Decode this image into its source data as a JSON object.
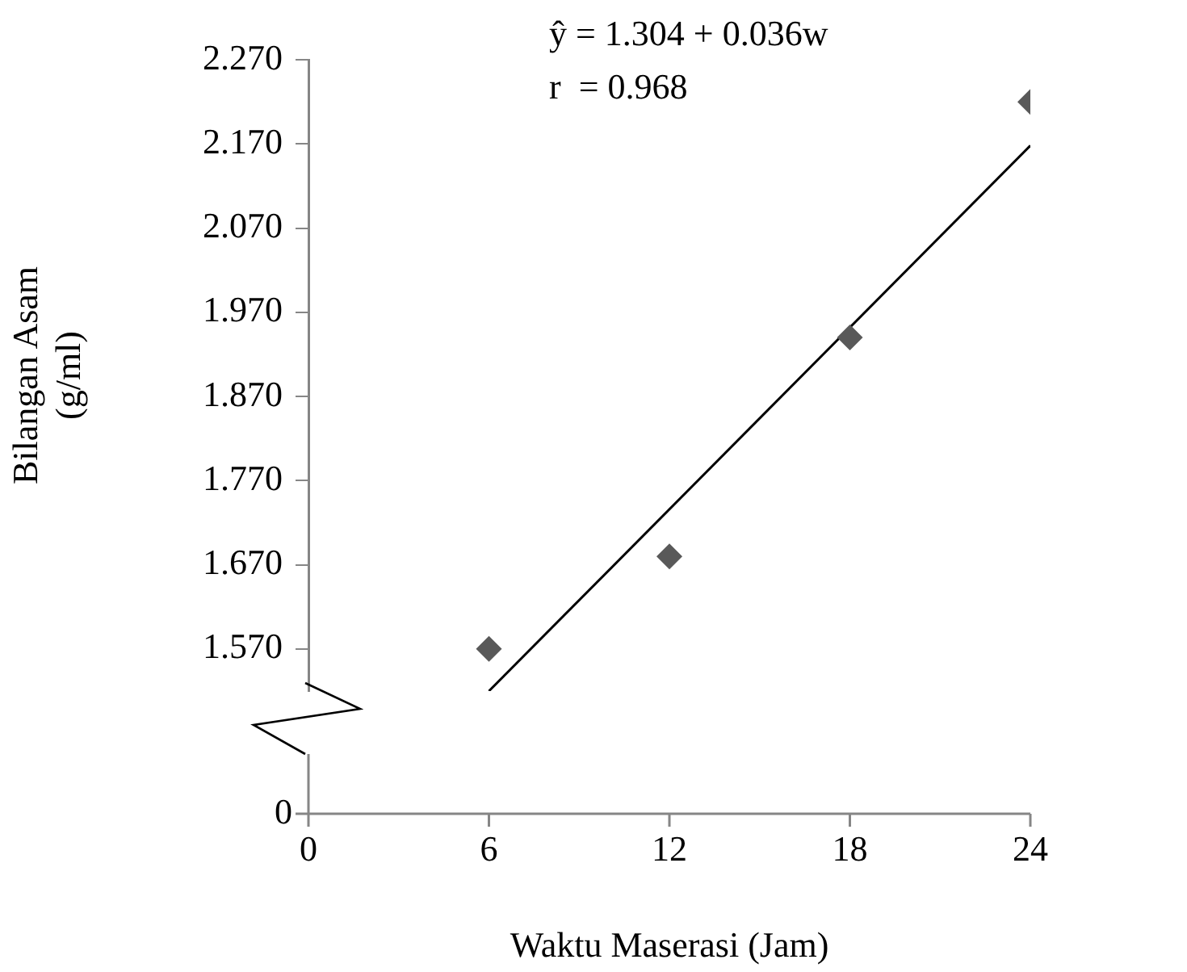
{
  "chart_data": {
    "type": "scatter",
    "ylabel": "Bilangan Asam (g/ml)",
    "xlabel": "Waktu Maserasi (Jam)",
    "annotations": [
      "ŷ = 1.304 + 0.036w",
      "r  = 0.968",
      "0"
    ],
    "xlim": [
      0,
      24
    ],
    "xticks": [
      0,
      6,
      12,
      18,
      24
    ],
    "ylim": [
      1.52,
      2.27
    ],
    "yticks": [
      {
        "value": 1.57,
        "label": "1.570"
      },
      {
        "value": 1.67,
        "label": "1.670"
      },
      {
        "value": 1.77,
        "label": "1.770"
      },
      {
        "value": 1.87,
        "label": "1.870"
      },
      {
        "value": 1.97,
        "label": "1.970"
      },
      {
        "value": 2.07,
        "label": "2.070"
      },
      {
        "value": 2.17,
        "label": "2.170"
      },
      {
        "value": 2.27,
        "label": "2.270"
      }
    ],
    "grid": false,
    "series": [
      {
        "type": "scatter",
        "color": "#595959",
        "marker": "diamond",
        "x": [
          6,
          12,
          18,
          24
        ],
        "values": [
          1.57,
          1.68,
          1.94,
          2.22
        ]
      },
      {
        "type": "line",
        "color": "#000000",
        "marker": "none",
        "x": [
          6,
          24
        ],
        "values": [
          1.52,
          2.168
        ]
      }
    ]
  }
}
